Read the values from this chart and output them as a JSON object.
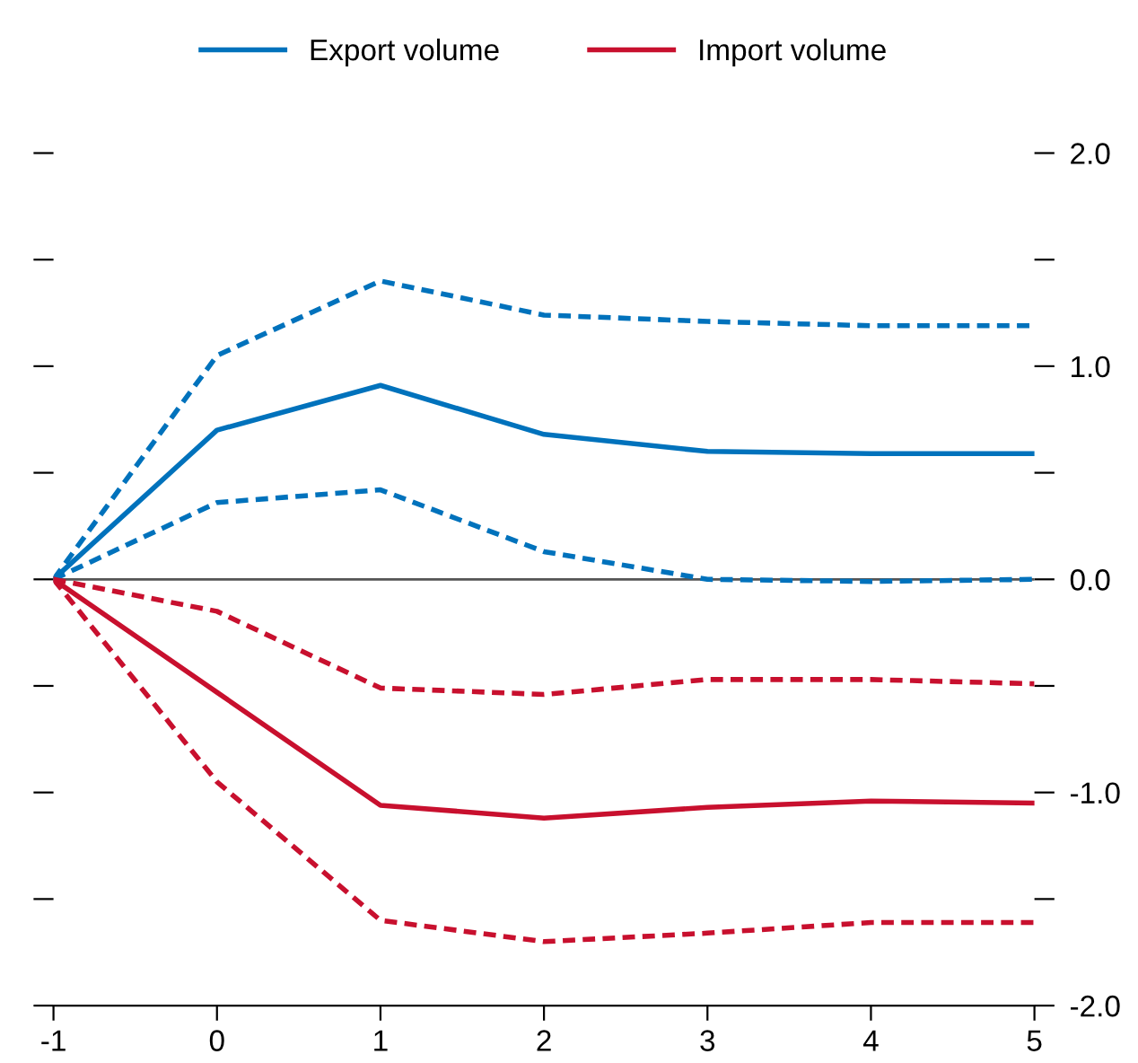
{
  "chart_data": {
    "type": "line",
    "x": [
      -1,
      0,
      1,
      2,
      3,
      4,
      5
    ],
    "series": [
      {
        "name": "Export volume",
        "color": "#0072bc",
        "line_style": "solid",
        "values": [
          0,
          0.7,
          0.91,
          0.68,
          0.6,
          0.59,
          0.59
        ]
      },
      {
        "color": "#0072bc",
        "line_style": "dashed",
        "values": [
          0,
          1.05,
          1.4,
          1.24,
          1.21,
          1.19,
          1.19
        ]
      },
      {
        "color": "#0072bc",
        "line_style": "dashed",
        "values": [
          0,
          0.36,
          0.42,
          0.13,
          0.0,
          -0.01,
          0.0
        ]
      },
      {
        "name": "Import volume",
        "color": "#c8102e",
        "line_style": "solid",
        "values": [
          0,
          -0.53,
          -1.06,
          -1.12,
          -1.07,
          -1.04,
          -1.05
        ]
      },
      {
        "color": "#c8102e",
        "line_style": "dashed",
        "values": [
          0,
          -0.15,
          -0.51,
          -0.54,
          -0.47,
          -0.47,
          -0.49
        ]
      },
      {
        "color": "#c8102e",
        "line_style": "dashed",
        "values": [
          0,
          -0.95,
          -1.6,
          -1.7,
          -1.66,
          -1.61,
          -1.61
        ]
      }
    ],
    "xlim": [
      -1,
      5
    ],
    "xticks": [
      -1,
      0,
      1,
      2,
      3,
      4,
      5
    ],
    "ylim": [
      -2,
      2
    ],
    "yticks": [
      {
        "value": -2,
        "label": "-2.0"
      },
      {
        "value": -1.5,
        "label": null
      },
      {
        "value": -1,
        "label": "-1.0"
      },
      {
        "value": -0.5,
        "label": null
      },
      {
        "value": 0,
        "label": "0.0"
      },
      {
        "value": 0.5,
        "label": null
      },
      {
        "value": 1,
        "label": "1.0"
      },
      {
        "value": 1.5,
        "label": null
      },
      {
        "value": 2,
        "label": "2.0"
      }
    ],
    "ref_lines": [
      {
        "axis": "y",
        "value": 0,
        "color": "#555555"
      }
    ],
    "legend": "top",
    "grid": false,
    "marker": "none"
  }
}
